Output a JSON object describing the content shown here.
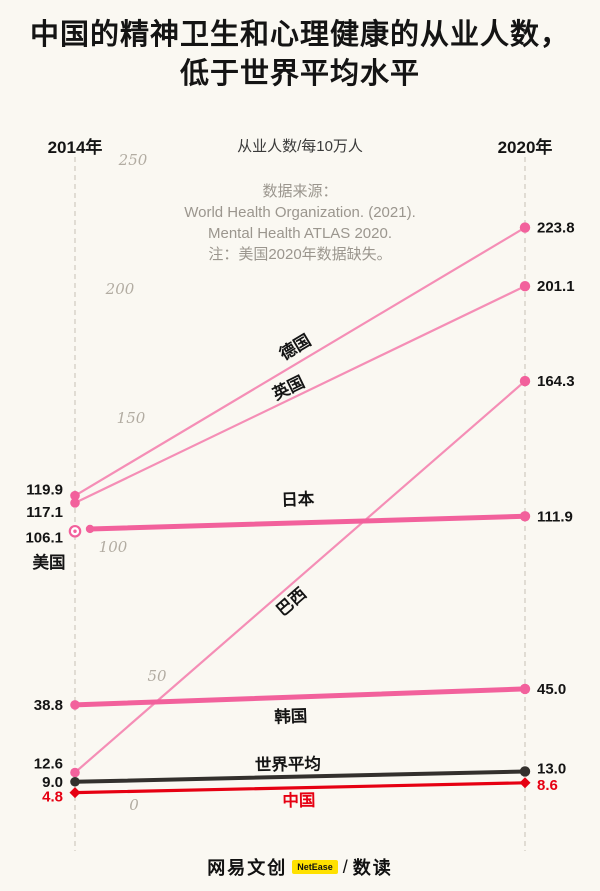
{
  "title": {
    "line1": "中国的精神卫生和心理健康的从业人数，",
    "line2": "低于世界平均水平"
  },
  "colors": {
    "pink": "#F2619C",
    "dark": "#33302D",
    "red": "#E60012",
    "text": "#141414",
    "tick": "#B2ACA2",
    "axis": "#D6D1C8",
    "note": "#9B968E",
    "bg": "#FAF8F2",
    "badge_yellow": "#FFE100"
  },
  "footer": {
    "brand": "网易文创",
    "netease_label": "NetEase",
    "slash": "/",
    "sub_brand": "数读"
  },
  "chart_data": {
    "type": "slope",
    "columns": [
      "2014年",
      "2020年"
    ],
    "axis_title": "从业人数/每10万人",
    "ylim": [
      0,
      250
    ],
    "yticks": [
      250,
      200,
      150,
      100,
      50,
      0
    ],
    "series": [
      {
        "id": "germany",
        "label": "德国",
        "style": "thin-pink",
        "values": {
          "2014": 119.9,
          "2020": 223.8
        }
      },
      {
        "id": "uk",
        "label": "英国",
        "style": "thin-pink",
        "values": {
          "2014": 117.1,
          "2020": 201.1
        }
      },
      {
        "id": "japan",
        "label": "日本",
        "style": "thick-pink",
        "values": {
          "2014": 107.0,
          "2020": 111.9
        },
        "label_2014_hidden": true
      },
      {
        "id": "usa",
        "label": "美国",
        "style": "open-pink",
        "values": {
          "2014": 106.1,
          "2020": null
        }
      },
      {
        "id": "brazil",
        "label": "巴西",
        "style": "thin-pink",
        "values": {
          "2014": 12.6,
          "2020": 164.3
        }
      },
      {
        "id": "korea",
        "label": "韩国",
        "style": "thick-pink",
        "values": {
          "2014": 38.8,
          "2020": 45.0
        }
      },
      {
        "id": "world",
        "label": "世界平均",
        "style": "thick-dark",
        "values": {
          "2014": 9.0,
          "2020": 13.0
        }
      },
      {
        "id": "china",
        "label": "中国",
        "style": "red-diamond",
        "values": {
          "2014": 4.8,
          "2020": 8.6
        }
      }
    ],
    "note_lines": [
      "数据来源：",
      "World Health Organization. (2021).",
      "Mental Health ATLAS 2020.",
      "注：美国2020年数据缺失。"
    ]
  }
}
